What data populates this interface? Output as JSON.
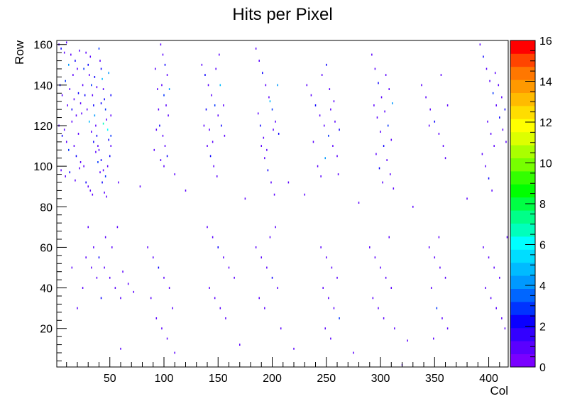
{
  "chart_data": {
    "type": "heatmap",
    "title": "Hits per Pixel",
    "xlabel": "Col",
    "ylabel": "Row",
    "xlim": [
      1,
      418
    ],
    "ylim": [
      1,
      162
    ],
    "x_ticks": [
      50,
      100,
      150,
      200,
      250,
      300,
      350,
      400
    ],
    "y_ticks": [
      20,
      40,
      60,
      80,
      100,
      120,
      140,
      160
    ],
    "z_range": [
      0,
      16
    ],
    "z_ticks": [
      0,
      2,
      4,
      6,
      8,
      10,
      12,
      14,
      16
    ],
    "palette": [
      "#7a00ff",
      "#5a00ff",
      "#3300ff",
      "#0a00ff",
      "#0033ff",
      "#0066ff",
      "#0099ff",
      "#00bbff",
      "#00ddff",
      "#00ffff",
      "#00ffbb",
      "#00ff88",
      "#00ff44",
      "#00ff00",
      "#33ff00",
      "#77ff00",
      "#aaff00",
      "#ddff00",
      "#ffff00",
      "#ffdd00",
      "#ffbb00",
      "#ff9900",
      "#ff7700",
      "#ff4400",
      "#ff0000"
    ],
    "bins": [
      [
        3,
        160,
        1
      ],
      [
        5,
        158,
        2
      ],
      [
        8,
        156,
        1
      ],
      [
        10,
        161,
        1
      ],
      [
        12,
        150,
        4
      ],
      [
        14,
        155,
        1
      ],
      [
        16,
        145,
        1
      ],
      [
        18,
        152,
        2
      ],
      [
        20,
        148,
        1
      ],
      [
        22,
        157,
        1
      ],
      [
        4,
        140,
        2
      ],
      [
        6,
        135,
        1
      ],
      [
        9,
        142,
        3
      ],
      [
        11,
        130,
        1
      ],
      [
        13,
        138,
        1
      ],
      [
        15,
        128,
        2
      ],
      [
        17,
        133,
        1
      ],
      [
        19,
        125,
        1
      ],
      [
        21,
        136,
        2
      ],
      [
        23,
        131,
        1
      ],
      [
        3,
        120,
        1
      ],
      [
        6,
        115,
        2
      ],
      [
        8,
        118,
        1
      ],
      [
        10,
        112,
        1
      ],
      [
        12,
        108,
        3
      ],
      [
        15,
        122,
        1
      ],
      [
        17,
        110,
        1
      ],
      [
        19,
        105,
        2
      ],
      [
        21,
        116,
        1
      ],
      [
        23,
        102,
        1
      ],
      [
        5,
        98,
        1
      ],
      [
        9,
        95,
        1
      ],
      [
        13,
        97,
        2
      ],
      [
        18,
        93,
        1
      ],
      [
        22,
        99,
        1
      ],
      [
        26,
        100,
        1
      ],
      [
        28,
        92,
        2
      ],
      [
        30,
        90,
        1
      ],
      [
        32,
        88,
        1
      ],
      [
        34,
        86,
        1
      ],
      [
        28,
        156,
        1
      ],
      [
        30,
        150,
        2
      ],
      [
        31,
        145,
        1
      ],
      [
        33,
        140,
        3
      ],
      [
        34,
        135,
        1
      ],
      [
        35,
        130,
        2
      ],
      [
        36,
        125,
        4
      ],
      [
        37,
        120,
        1
      ],
      [
        38,
        115,
        2
      ],
      [
        39,
        110,
        1
      ],
      [
        40,
        158,
        3
      ],
      [
        41,
        152,
        1
      ],
      [
        42,
        148,
        2
      ],
      [
        43,
        143,
        5
      ],
      [
        44,
        138,
        1
      ],
      [
        45,
        133,
        2
      ],
      [
        46,
        128,
        3
      ],
      [
        47,
        123,
        1
      ],
      [
        48,
        118,
        6
      ],
      [
        49,
        113,
        2
      ],
      [
        40,
        108,
        1
      ],
      [
        42,
        103,
        2
      ],
      [
        44,
        98,
        1
      ],
      [
        46,
        95,
        3
      ],
      [
        48,
        100,
        1
      ],
      [
        50,
        105,
        2
      ],
      [
        51,
        110,
        1
      ],
      [
        51,
        115,
        3
      ],
      [
        51,
        125,
        1
      ],
      [
        51,
        135,
        2
      ],
      [
        25,
        140,
        1
      ],
      [
        27,
        135,
        2
      ],
      [
        29,
        128,
        1
      ],
      [
        31,
        122,
        5
      ],
      [
        33,
        117,
        1
      ],
      [
        35,
        112,
        2
      ],
      [
        37,
        107,
        1
      ],
      [
        39,
        102,
        3
      ],
      [
        41,
        97,
        1
      ],
      [
        43,
        92,
        2
      ],
      [
        45,
        87,
        1
      ],
      [
        47,
        85,
        1
      ],
      [
        49,
        146,
        4
      ],
      [
        36,
        144,
        2
      ],
      [
        38,
        139,
        1
      ],
      [
        32,
        154,
        1
      ],
      [
        26,
        148,
        3
      ],
      [
        24,
        126,
        1
      ],
      [
        44,
        121,
        7
      ],
      [
        42,
        131,
        2
      ],
      [
        97,
        160,
        1
      ],
      [
        99,
        155,
        1
      ],
      [
        101,
        150,
        2
      ],
      [
        103,
        145,
        1
      ],
      [
        98,
        140,
        1
      ],
      [
        100,
        135,
        3
      ],
      [
        102,
        130,
        1
      ],
      [
        104,
        125,
        1
      ],
      [
        96,
        120,
        2
      ],
      [
        99,
        115,
        1
      ],
      [
        101,
        110,
        1
      ],
      [
        103,
        105,
        2
      ],
      [
        100,
        100,
        1
      ],
      [
        92,
        148,
        1
      ],
      [
        94,
        138,
        1
      ],
      [
        95,
        128,
        1
      ],
      [
        93,
        118,
        1
      ],
      [
        91,
        108,
        1
      ],
      [
        97,
        103,
        1
      ],
      [
        105,
        138,
        4
      ],
      [
        135,
        150,
        1
      ],
      [
        138,
        145,
        2
      ],
      [
        141,
        140,
        1
      ],
      [
        144,
        135,
        1
      ],
      [
        147,
        130,
        3
      ],
      [
        150,
        125,
        1
      ],
      [
        153,
        120,
        2
      ],
      [
        156,
        115,
        1
      ],
      [
        140,
        110,
        1
      ],
      [
        143,
        105,
        2
      ],
      [
        146,
        100,
        1
      ],
      [
        149,
        95,
        1
      ],
      [
        152,
        140,
        5
      ],
      [
        155,
        130,
        1
      ],
      [
        137,
        120,
        1
      ],
      [
        139,
        128,
        2
      ],
      [
        142,
        118,
        1
      ],
      [
        145,
        112,
        1
      ],
      [
        148,
        148,
        1
      ],
      [
        151,
        155,
        1
      ],
      [
        185,
        158,
        1
      ],
      [
        188,
        152,
        1
      ],
      [
        191,
        146,
        2
      ],
      [
        194,
        140,
        1
      ],
      [
        197,
        134,
        1
      ],
      [
        200,
        128,
        3
      ],
      [
        203,
        122,
        1
      ],
      [
        206,
        116,
        2
      ],
      [
        190,
        110,
        1
      ],
      [
        193,
        104,
        1
      ],
      [
        196,
        98,
        2
      ],
      [
        199,
        92,
        1
      ],
      [
        202,
        86,
        1
      ],
      [
        205,
        140,
        4
      ],
      [
        187,
        126,
        1
      ],
      [
        189,
        120,
        2
      ],
      [
        192,
        114,
        1
      ],
      [
        195,
        108,
        1
      ],
      [
        198,
        132,
        5
      ],
      [
        201,
        118,
        1
      ],
      [
        232,
        140,
        1
      ],
      [
        236,
        135,
        1
      ],
      [
        240,
        130,
        2
      ],
      [
        244,
        125,
        1
      ],
      [
        248,
        120,
        1
      ],
      [
        252,
        115,
        3
      ],
      [
        256,
        110,
        1
      ],
      [
        260,
        105,
        1
      ],
      [
        246,
        145,
        1
      ],
      [
        250,
        150,
        2
      ],
      [
        254,
        128,
        1
      ],
      [
        258,
        122,
        1
      ],
      [
        262,
        118,
        2
      ],
      [
        238,
        112,
        1
      ],
      [
        242,
        100,
        1
      ],
      [
        245,
        95,
        1
      ],
      [
        249,
        104,
        4
      ],
      [
        253,
        138,
        1
      ],
      [
        257,
        132,
        1
      ],
      [
        261,
        96,
        1
      ],
      [
        292,
        155,
        1
      ],
      [
        295,
        148,
        1
      ],
      [
        298,
        141,
        2
      ],
      [
        301,
        134,
        1
      ],
      [
        304,
        127,
        1
      ],
      [
        307,
        120,
        3
      ],
      [
        310,
        113,
        1
      ],
      [
        296,
        106,
        1
      ],
      [
        299,
        99,
        2
      ],
      [
        302,
        92,
        1
      ],
      [
        305,
        145,
        1
      ],
      [
        308,
        138,
        1
      ],
      [
        311,
        131,
        4
      ],
      [
        297,
        124,
        1
      ],
      [
        300,
        117,
        1
      ],
      [
        303,
        110,
        2
      ],
      [
        306,
        103,
        1
      ],
      [
        309,
        96,
        1
      ],
      [
        312,
        89,
        1
      ],
      [
        294,
        130,
        1
      ],
      [
        338,
        140,
        1
      ],
      [
        342,
        134,
        1
      ],
      [
        346,
        128,
        1
      ],
      [
        350,
        122,
        2
      ],
      [
        354,
        116,
        1
      ],
      [
        358,
        110,
        1
      ],
      [
        362,
        130,
        1
      ],
      [
        345,
        120,
        1
      ],
      [
        356,
        145,
        1
      ],
      [
        360,
        104,
        1
      ],
      [
        392,
        160,
        1
      ],
      [
        395,
        154,
        2
      ],
      [
        398,
        148,
        1
      ],
      [
        401,
        142,
        1
      ],
      [
        404,
        136,
        3
      ],
      [
        407,
        130,
        1
      ],
      [
        410,
        124,
        2
      ],
      [
        413,
        118,
        1
      ],
      [
        416,
        112,
        1
      ],
      [
        394,
        106,
        1
      ],
      [
        397,
        100,
        1
      ],
      [
        400,
        94,
        2
      ],
      [
        403,
        88,
        1
      ],
      [
        406,
        146,
        1
      ],
      [
        409,
        140,
        1
      ],
      [
        412,
        134,
        1
      ],
      [
        415,
        128,
        2
      ],
      [
        399,
        122,
        1
      ],
      [
        402,
        116,
        1
      ],
      [
        405,
        110,
        1
      ],
      [
        30,
        70,
        1
      ],
      [
        35,
        60,
        1
      ],
      [
        40,
        55,
        2
      ],
      [
        45,
        50,
        1
      ],
      [
        50,
        45,
        1
      ],
      [
        55,
        40,
        1
      ],
      [
        60,
        35,
        1
      ],
      [
        25,
        40,
        1
      ],
      [
        20,
        30,
        1
      ],
      [
        15,
        50,
        1
      ],
      [
        42,
        35,
        2
      ],
      [
        46,
        65,
        1
      ],
      [
        38,
        45,
        1
      ],
      [
        33,
        50,
        1
      ],
      [
        28,
        55,
        1
      ],
      [
        52,
        60,
        1
      ],
      [
        57,
        70,
        1
      ],
      [
        62,
        48,
        1
      ],
      [
        67,
        42,
        1
      ],
      [
        72,
        38,
        1
      ],
      [
        85,
        60,
        1
      ],
      [
        90,
        55,
        1
      ],
      [
        95,
        50,
        2
      ],
      [
        100,
        45,
        1
      ],
      [
        105,
        40,
        1
      ],
      [
        88,
        35,
        1
      ],
      [
        93,
        25,
        1
      ],
      [
        98,
        20,
        1
      ],
      [
        103,
        15,
        1
      ],
      [
        108,
        30,
        1
      ],
      [
        140,
        70,
        1
      ],
      [
        145,
        65,
        1
      ],
      [
        150,
        60,
        2
      ],
      [
        155,
        55,
        1
      ],
      [
        160,
        50,
        1
      ],
      [
        165,
        45,
        1
      ],
      [
        142,
        40,
        1
      ],
      [
        147,
        35,
        1
      ],
      [
        152,
        30,
        1
      ],
      [
        157,
        25,
        1
      ],
      [
        185,
        60,
        1
      ],
      [
        190,
        55,
        1
      ],
      [
        195,
        50,
        1
      ],
      [
        200,
        45,
        2
      ],
      [
        205,
        40,
        1
      ],
      [
        188,
        35,
        1
      ],
      [
        193,
        30,
        1
      ],
      [
        198,
        65,
        1
      ],
      [
        203,
        70,
        1
      ],
      [
        208,
        20,
        1
      ],
      [
        245,
        60,
        1
      ],
      [
        250,
        55,
        1
      ],
      [
        255,
        50,
        1
      ],
      [
        260,
        45,
        1
      ],
      [
        247,
        40,
        1
      ],
      [
        252,
        35,
        1
      ],
      [
        257,
        30,
        1
      ],
      [
        262,
        25,
        3
      ],
      [
        249,
        20,
        1
      ],
      [
        254,
        15,
        1
      ],
      [
        290,
        60,
        1
      ],
      [
        295,
        55,
        1
      ],
      [
        300,
        50,
        1
      ],
      [
        305,
        45,
        1
      ],
      [
        310,
        40,
        1
      ],
      [
        293,
        35,
        1
      ],
      [
        298,
        30,
        1
      ],
      [
        303,
        25,
        1
      ],
      [
        308,
        65,
        1
      ],
      [
        313,
        20,
        1
      ],
      [
        345,
        60,
        1
      ],
      [
        350,
        55,
        1
      ],
      [
        355,
        50,
        1
      ],
      [
        360,
        45,
        1
      ],
      [
        347,
        40,
        1
      ],
      [
        352,
        30,
        3
      ],
      [
        357,
        25,
        1
      ],
      [
        362,
        20,
        1
      ],
      [
        349,
        15,
        1
      ],
      [
        354,
        65,
        1
      ],
      [
        395,
        60,
        1
      ],
      [
        400,
        55,
        1
      ],
      [
        405,
        50,
        1
      ],
      [
        410,
        45,
        1
      ],
      [
        397,
        40,
        1
      ],
      [
        402,
        35,
        1
      ],
      [
        407,
        30,
        1
      ],
      [
        412,
        25,
        1
      ],
      [
        415,
        20,
        1
      ],
      [
        417,
        65,
        1
      ],
      [
        78,
        90,
        1
      ],
      [
        120,
        88,
        1
      ],
      [
        175,
        84,
        1
      ],
      [
        230,
        86,
        1
      ],
      [
        280,
        82,
        1
      ],
      [
        330,
        80,
        1
      ],
      [
        380,
        84,
        1
      ],
      [
        58,
        92,
        1
      ],
      [
        110,
        96,
        1
      ],
      [
        215,
        92,
        1
      ],
      [
        60,
        10,
        1
      ],
      [
        110,
        8,
        1
      ],
      [
        170,
        12,
        1
      ],
      [
        220,
        10,
        1
      ],
      [
        275,
        8,
        1
      ],
      [
        325,
        14,
        1
      ],
      [
        320,
        2,
        1
      ]
    ]
  }
}
